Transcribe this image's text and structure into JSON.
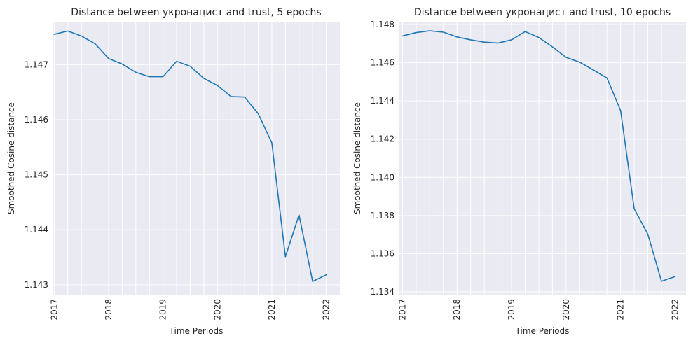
{
  "chart_data": [
    {
      "type": "line",
      "title": "Distance between укронацист and trust, 5 epochs",
      "xlabel": "Time Periods",
      "ylabel": "Smoothed Cosine distance",
      "xticks": [
        "2017",
        "2018",
        "2019",
        "2020",
        "2021",
        "2022"
      ],
      "yticks": [
        "1.143",
        "1.144",
        "1.145",
        "1.146",
        "1.147"
      ],
      "ylim": [
        1.14282,
        1.14778
      ],
      "xlim": [
        2016.97,
        2022.25
      ],
      "grid": true,
      "series": [
        {
          "x": [
            2017.0,
            2017.25,
            2017.5,
            2017.75,
            2018.0,
            2018.25,
            2018.5,
            2018.75,
            2019.0,
            2019.25,
            2019.5,
            2019.75,
            2020.0,
            2020.25,
            2020.5,
            2020.75,
            2021.0,
            2021.25,
            2021.5,
            2021.75,
            2022.0
          ],
          "y": [
            1.14755,
            1.14761,
            1.14752,
            1.14738,
            1.14711,
            1.14701,
            1.14686,
            1.14678,
            1.14678,
            1.14706,
            1.14697,
            1.14675,
            1.14662,
            1.14642,
            1.14641,
            1.14611,
            1.14558,
            1.14351,
            1.14427,
            1.14306,
            1.14318
          ]
        }
      ]
    },
    {
      "type": "line",
      "title": "Distance between укронацист and trust, 10 epochs",
      "xlabel": "Time Periods",
      "ylabel": "Smoothed Cosine distance",
      "xticks": [
        "2017",
        "2018",
        "2019",
        "2020",
        "2021",
        "2022"
      ],
      "yticks": [
        "1.134",
        "1.136",
        "1.138",
        "1.140",
        "1.142",
        "1.144",
        "1.146",
        "1.148"
      ],
      "ylim": [
        1.13385,
        1.14815
      ],
      "xlim": [
        2016.93,
        2022.2
      ],
      "grid": true,
      "series": [
        {
          "x": [
            2017.0,
            2017.25,
            2017.5,
            2017.75,
            2018.0,
            2018.25,
            2018.5,
            2018.75,
            2019.0,
            2019.25,
            2019.5,
            2019.75,
            2020.0,
            2020.25,
            2020.5,
            2020.75,
            2021.0,
            2021.25,
            2021.5,
            2021.75,
            2022.0
          ],
          "y": [
            1.1474,
            1.14758,
            1.14767,
            1.1476,
            1.14735,
            1.1472,
            1.14708,
            1.14703,
            1.1472,
            1.14763,
            1.14732,
            1.14683,
            1.14628,
            1.14603,
            1.14562,
            1.1452,
            1.1435,
            1.13835,
            1.13702,
            1.13455,
            1.1348
          ]
        }
      ]
    }
  ]
}
